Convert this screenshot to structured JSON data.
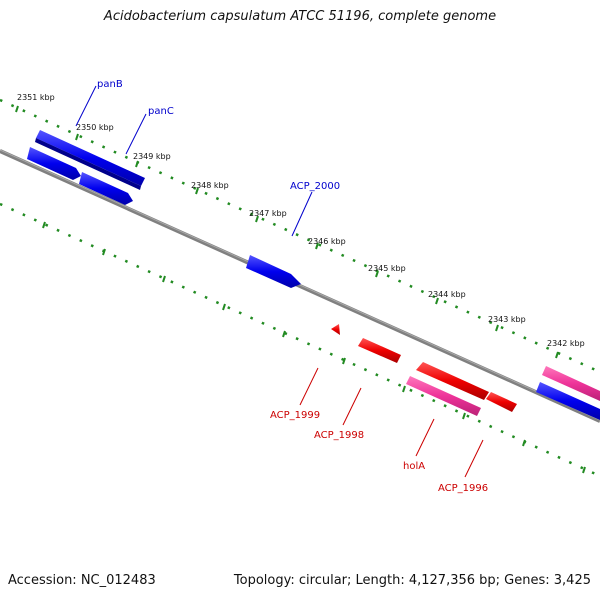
{
  "title": "Acidobacterium capsulatum ATCC 51196, complete genome",
  "footer": {
    "accession": "Accession: NC_012483",
    "summary": "Topology: circular; Length: 4,127,356 bp; Genes: 3,425"
  },
  "colors": {
    "backbone": "#808080",
    "tick": "#228B22",
    "forward_gene": "#0000EE",
    "reverse_gene": "#EE0000",
    "pseudo_gene": "#EE3399",
    "forward_label": "#0000CC",
    "reverse_label": "#CC0000"
  },
  "ticks": [
    "2351 kbp",
    "2350 kbp",
    "2349 kbp",
    "2348 kbp",
    "2347 kbp",
    "2346 kbp",
    "2345 kbp",
    "2344 kbp",
    "2343 kbp",
    "2342 kbp"
  ],
  "forward_labels": [
    "panB",
    "panC",
    "ACP_2000"
  ],
  "reverse_labels": [
    "ACP_1999",
    "ACP_1998",
    "holA",
    "ACP_1996"
  ]
}
